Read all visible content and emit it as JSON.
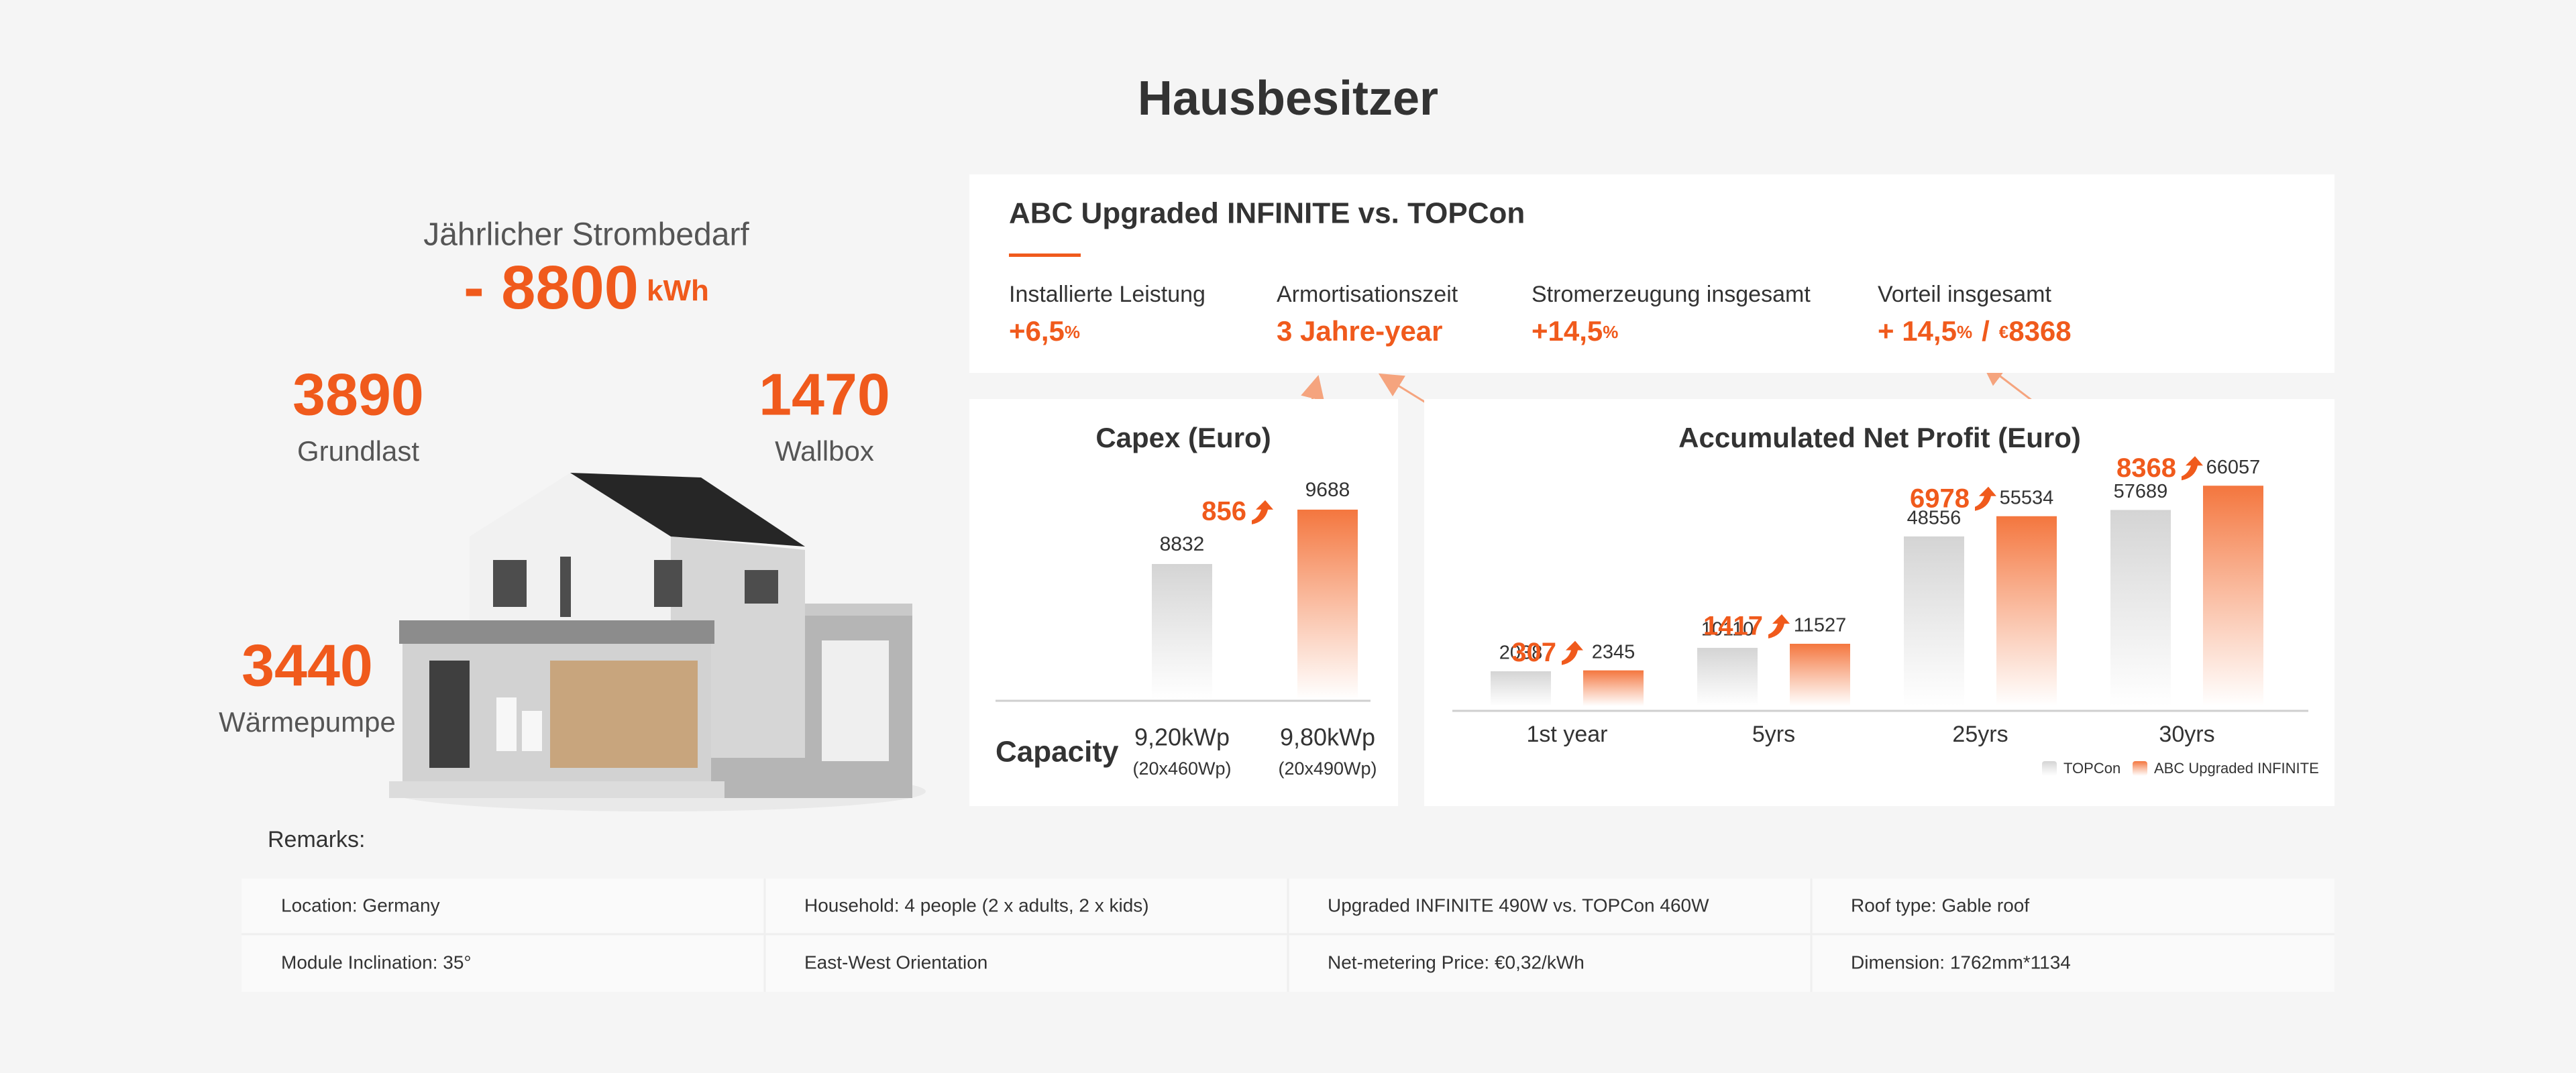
{
  "title": "Hausbesitzer",
  "demand": {
    "label": "Jährlicher Strombedarf",
    "value": "- 8800",
    "unit": "kWh"
  },
  "loads": [
    {
      "value": 3890,
      "label": "Grundlast"
    },
    {
      "value": 1470,
      "label": "Wallbox"
    },
    {
      "value": 3440,
      "label": "Wärmepumpe"
    }
  ],
  "summary": {
    "title": "ABC Upgraded INFINITE vs. TOPCon",
    "items": [
      {
        "label": "Installierte Leistung",
        "value": "+6,5",
        "unit": "%"
      },
      {
        "label": "Armortisationszeit",
        "value": "3 Jahre-year"
      },
      {
        "label": "Stromerzeugung insgesamt",
        "value": "+14,5",
        "unit": "%"
      },
      {
        "label": "Vorteil insgesamt",
        "value": "+ 14,5",
        "unit": "%",
        "separator": "/",
        "currency": "€",
        "amount": 8368
      }
    ]
  },
  "chart_data": [
    {
      "type": "bar",
      "title": "Capex (Euro)",
      "category_title": "Capacity",
      "categories": [
        "9,20kWp",
        "9,80kWp"
      ],
      "category_notes": [
        "(20x460Wp)",
        "(20x490Wp)"
      ],
      "values": [
        8832,
        9688
      ],
      "colors": [
        "#d4d4d4",
        "#f4763e"
      ],
      "difference": 856,
      "ylim": [
        6700,
        10500
      ]
    },
    {
      "type": "grouped_bar",
      "title": "Accumulated Net Profit (Euro)",
      "categories": [
        "1st year",
        "5yrs",
        "25yrs",
        "30yrs"
      ],
      "series": [
        {
          "name": "TOPCon",
          "color": "#d4d4d4",
          "values": [
            2038,
            10110,
            48556,
            57689
          ]
        },
        {
          "name": "ABC Upgraded INFINITE",
          "color": "#f4763e",
          "values": [
            2345,
            11527,
            55534,
            66057
          ]
        }
      ],
      "differences": [
        307,
        1417,
        6978,
        8368
      ],
      "ylim": [
        -10000,
        80000
      ]
    }
  ],
  "remarks": {
    "title": "Remarks:",
    "rows": [
      [
        "Location: Germany",
        "Household: 4 people (2 x adults, 2 x kids)",
        "Upgraded INFINITE 490W vs. TOPCon 460W",
        "Roof type: Gable roof"
      ],
      [
        "Module Inclination: 35°",
        "East-West Orientation",
        "Net-metering Price: €0,32/kWh",
        "Dimension: 1762mm*1134"
      ]
    ]
  }
}
